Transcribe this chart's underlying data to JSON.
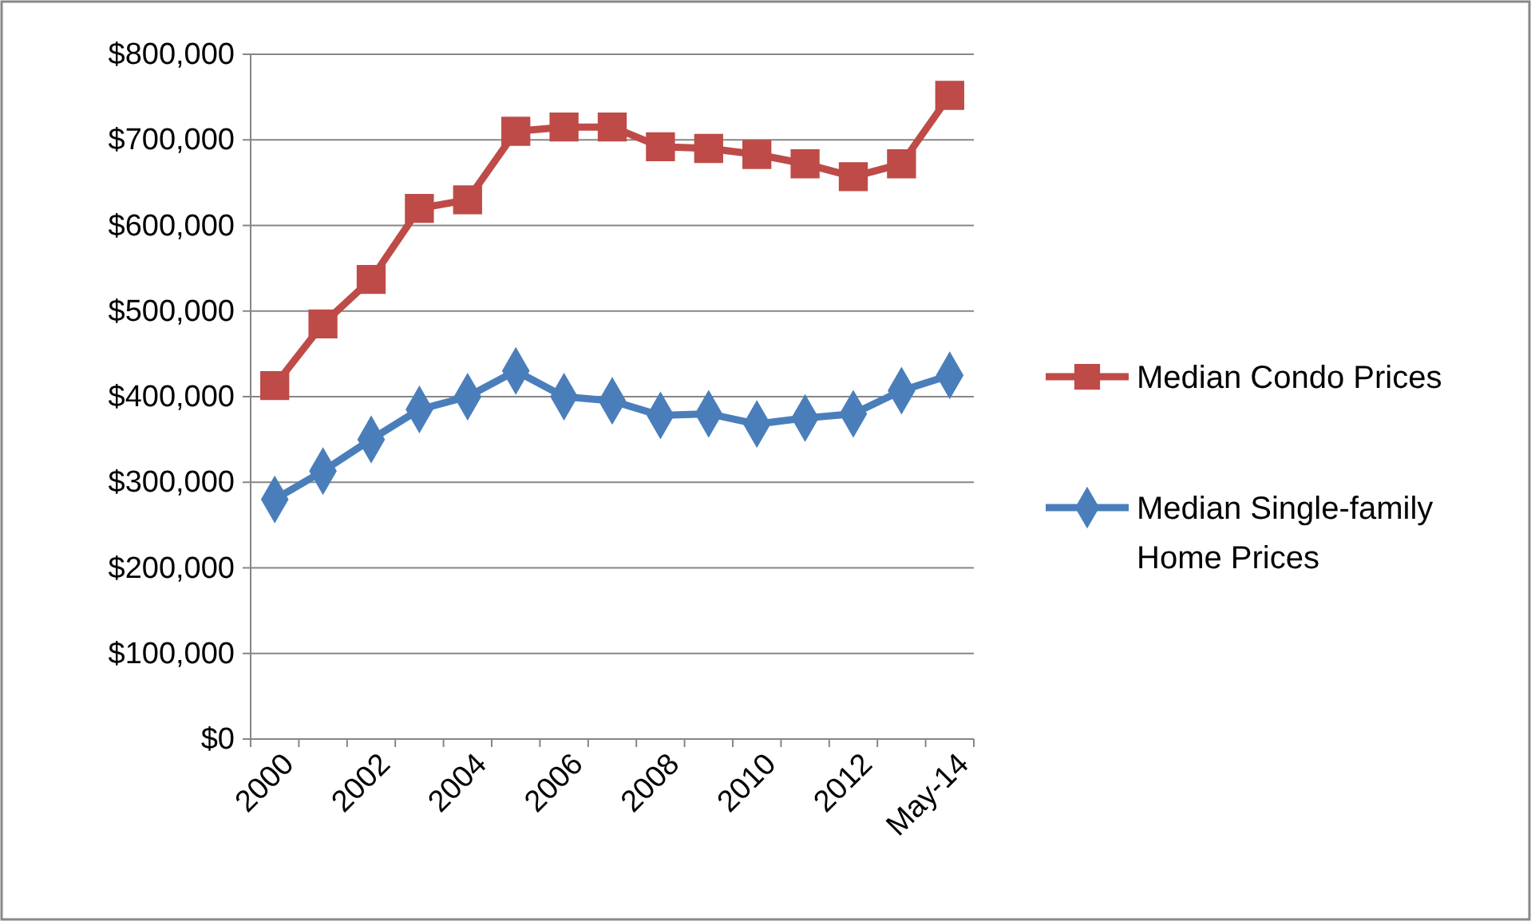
{
  "chart_data": {
    "type": "line",
    "categories": [
      "2000",
      null,
      "2002",
      null,
      "2004",
      null,
      "2006",
      null,
      "2008",
      null,
      "2010",
      null,
      "2012",
      null,
      "May-14"
    ],
    "ylim": [
      0,
      800000
    ],
    "yticks": [
      {
        "value": 0,
        "label": "$0"
      },
      {
        "value": 100000,
        "label": "$100,000"
      },
      {
        "value": 200000,
        "label": "$200,000"
      },
      {
        "value": 300000,
        "label": "$300,000"
      },
      {
        "value": 400000,
        "label": "$400,000"
      },
      {
        "value": 500000,
        "label": "$500,000"
      },
      {
        "value": 600000,
        "label": "$600,000"
      },
      {
        "value": 700000,
        "label": "$700,000"
      },
      {
        "value": 800000,
        "label": "$800,000"
      }
    ],
    "grid": "y",
    "legend": "right",
    "line_style": "solid",
    "series": [
      {
        "name": "Median Condo Prices",
        "color": "#be4b48",
        "marker": "square",
        "values": [
          413000,
          485000,
          537000,
          620000,
          630000,
          710000,
          715000,
          715000,
          692000,
          690000,
          683000,
          672000,
          657000,
          672000,
          752000
        ]
      },
      {
        "name": "Median Single-family Home Prices",
        "color": "#4a7ebb",
        "marker": "diamond",
        "values": [
          280000,
          313000,
          350000,
          385000,
          400000,
          430000,
          400000,
          395000,
          378000,
          380000,
          368000,
          375000,
          380000,
          407000,
          425000
        ]
      }
    ]
  }
}
